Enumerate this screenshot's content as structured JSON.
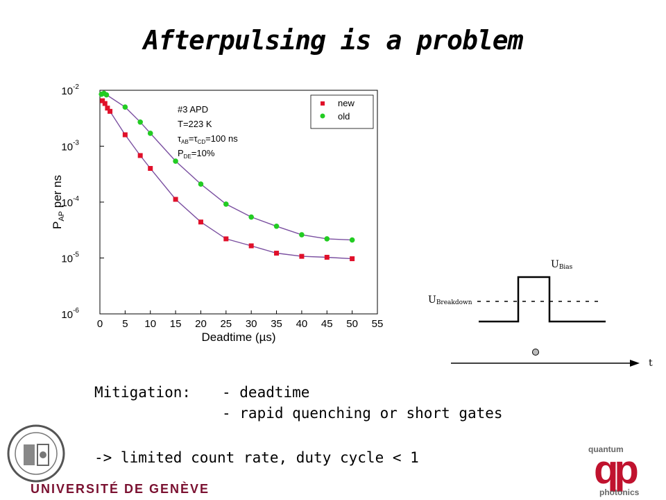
{
  "slide": {
    "title": "Afterpulsing is a problem",
    "mitigation_label": "Mitigation:",
    "mitigation_items": [
      "- deadtime",
      "- rapid quenching or short gates"
    ],
    "consequence": "-> limited count rate, duty cycle < 1",
    "university": "UNIVERSITÉ DE GENÈVE",
    "qp_top": "quantum",
    "qp_letters": "qp",
    "qp_bottom": "photonics"
  },
  "chart_data": {
    "type": "scatter",
    "xlabel": "Deadtime (µs)",
    "ylabel": "P_AP per ns",
    "xlim": [
      0,
      55
    ],
    "ylim": [
      1e-06,
      0.01
    ],
    "yscale": "log",
    "x_ticks": [
      0,
      5,
      10,
      15,
      20,
      25,
      30,
      35,
      40,
      45,
      50,
      55
    ],
    "y_ticks": [
      {
        "base": "10",
        "exp": "-2",
        "value": 0.01
      },
      {
        "base": "10",
        "exp": "-3",
        "value": 0.001
      },
      {
        "base": "10",
        "exp": "-4",
        "value": 0.0001
      },
      {
        "base": "10",
        "exp": "-5",
        "value": 1e-05
      },
      {
        "base": "10",
        "exp": "-6",
        "value": 1e-06
      }
    ],
    "annotation_lines": [
      "#3 APD",
      "T=223 K",
      "τAB=τCD=100 ns",
      "PDE=10%"
    ],
    "legend_position": "top-right",
    "colors": {
      "new": "#e0102a",
      "old": "#22cc22",
      "fit": "#7a4fa0"
    },
    "series": [
      {
        "name": "new",
        "x": [
          0.5,
          1,
          1.5,
          2,
          5,
          8,
          10,
          15,
          20,
          25,
          30,
          35,
          40,
          45,
          50
        ],
        "y": [
          0.0065,
          0.0058,
          0.0048,
          0.0042,
          0.0016,
          0.00068,
          0.0004,
          0.000112,
          4.4e-05,
          2.2e-05,
          1.65e-05,
          1.22e-05,
          1.07e-05,
          1.03e-05,
          9.7e-06
        ]
      },
      {
        "name": "old",
        "x": [
          0.3,
          0.8,
          1.3,
          5,
          8,
          10,
          15,
          20,
          25,
          30,
          35,
          40,
          45,
          50
        ],
        "y": [
          0.0085,
          0.0088,
          0.0083,
          0.005,
          0.0027,
          0.0017,
          0.00054,
          0.00021,
          9.2e-05,
          5.4e-05,
          3.7e-05,
          2.6e-05,
          2.2e-05,
          2.1e-05
        ]
      }
    ]
  },
  "pulse_diagram": {
    "u_bias": "U",
    "u_bias_sub": "Bias",
    "u_breakdown": "U",
    "u_breakdown_sub": "Breakdown",
    "t_label": "t"
  }
}
